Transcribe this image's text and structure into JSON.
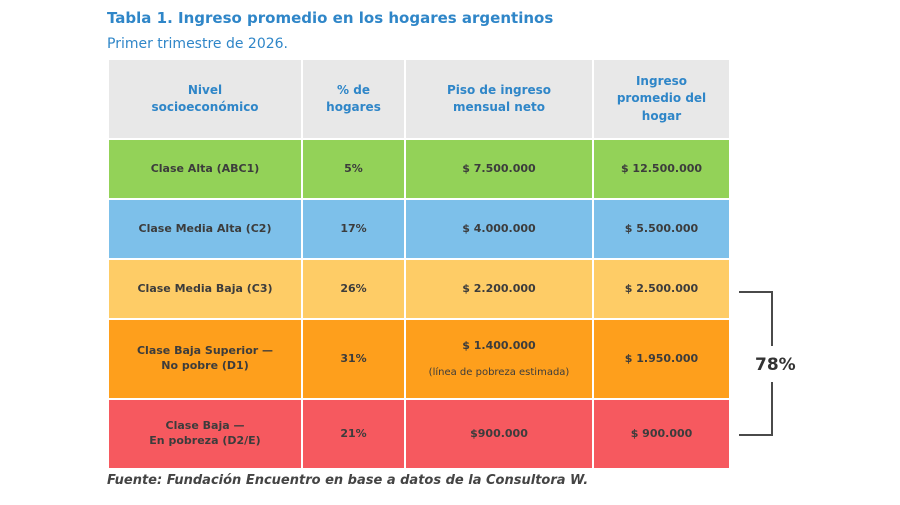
{
  "title": "Tabla 1. Ingreso promedio en los hogares argentinos",
  "subtitle": "Primer trimestre de 2026.",
  "source": "Fuente: Fundación Encuentro en base a datos de la Consultora W.",
  "bracket_label": "78%",
  "chart_data": {
    "type": "table",
    "columns": [
      "Nivel\nsocioeconómico",
      "% de\nhogares",
      "Piso de ingreso\nmensual neto",
      "Ingreso\npromedio del\nhogar"
    ],
    "rows": [
      {
        "nivel": "Clase Alta (ABC1)",
        "pct": "5%",
        "piso": "$ 7.500.000",
        "note": "",
        "promedio": "$ 12.500.000",
        "color": "#93d258"
      },
      {
        "nivel": "Clase Media Alta (C2)",
        "pct": "17%",
        "piso": "$ 4.000.000",
        "note": "",
        "promedio": "$ 5.500.000",
        "color": "#7dc0ea"
      },
      {
        "nivel": "Clase Media Baja (C3)",
        "pct": "26%",
        "piso": "$ 2.200.000",
        "note": "",
        "promedio": "$ 2.500.000",
        "color": "#fecc66"
      },
      {
        "nivel": "Clase Baja Superior —\nNo pobre (D1)",
        "pct": "31%",
        "piso": "$ 1.400.000",
        "note": "(línea de pobreza estimada)",
        "promedio": "$ 1.950.000",
        "color": "#fe9f1c"
      },
      {
        "nivel": "Clase Baja —\nEn pobreza (D2/E)",
        "pct": "21%",
        "piso": "$900.000",
        "note": "",
        "promedio": "$ 900.000",
        "color": "#f6595f"
      }
    ]
  }
}
